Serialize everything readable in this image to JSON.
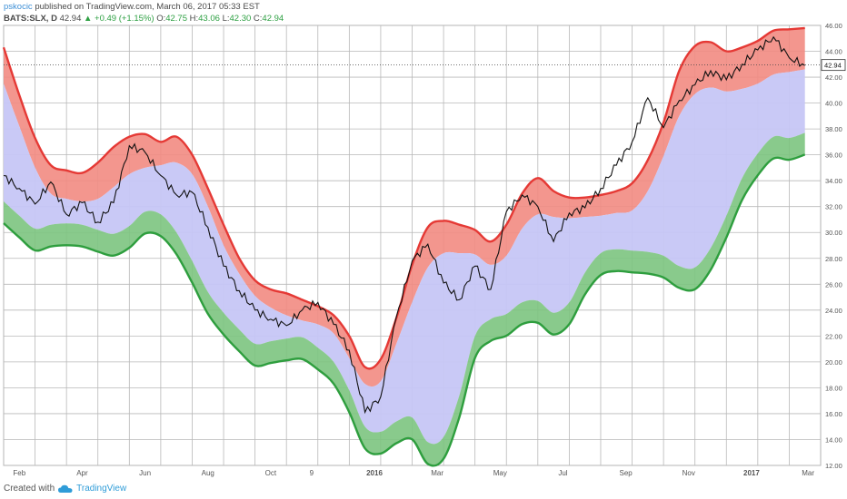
{
  "header": {
    "author": "pskocic",
    "published_text": "published on TradingView.com, March 06, 2017 05:33 EST",
    "symbol": "BATS:SLX, D",
    "last": "42.94",
    "change": "+0.49 (+1.15%)",
    "open_label": "O:",
    "open": "42.75",
    "high_label": "H:",
    "high": "43.06",
    "low_label": "L:",
    "low": "42.30",
    "close_label": "C:",
    "close": "42.94"
  },
  "footer": {
    "created_with": "Created with",
    "brand": "TradingView"
  },
  "colors": {
    "upper_band": "#e53935",
    "upper_fill": "#f28b82",
    "mid_fill": "#c6c6f5",
    "lower_band": "#2e9e3e",
    "lower_fill": "#7cc47f",
    "price": "#111111",
    "last_price_bg": "#ffffff"
  },
  "chart_data": {
    "type": "line",
    "title": "",
    "grid": true,
    "ylim": [
      12,
      46
    ],
    "y_ticks": [
      "12.00",
      "14.00",
      "16.00",
      "18.00",
      "20.00",
      "22.00",
      "24.00",
      "26.00",
      "28.00",
      "30.00",
      "32.00",
      "34.00",
      "36.00",
      "38.00",
      "40.00",
      "42.00",
      "44.00",
      "46.00"
    ],
    "x_labels": [
      "Feb",
      "Apr",
      "Jun",
      "Aug",
      "Oct",
      "9",
      "2016",
      "Mar",
      "May",
      "Jul",
      "Sep",
      "Nov",
      "2017",
      "Mar"
    ],
    "x_label_pos": [
      0.5,
      2.5,
      4.5,
      6.5,
      8.5,
      9.8,
      11.8,
      13.8,
      15.8,
      17.8,
      19.8,
      21.8,
      23.8,
      25.6
    ],
    "x_grid_pos": [
      0,
      1,
      2,
      3,
      4,
      5,
      6,
      7,
      8,
      9,
      10,
      11,
      12,
      13,
      14,
      15,
      16,
      17,
      18,
      19,
      20,
      21,
      22,
      23,
      24,
      25
    ],
    "last_price_label": "42.94",
    "last_price": 42.94,
    "x": [
      0,
      0.5,
      1,
      1.5,
      2,
      2.5,
      3,
      3.5,
      4,
      4.5,
      5,
      5.5,
      6,
      6.5,
      7,
      7.5,
      8,
      8.5,
      9,
      9.5,
      10,
      10.5,
      11,
      11.5,
      12,
      12.5,
      13,
      13.5,
      14,
      14.5,
      15,
      15.5,
      16,
      16.5,
      17,
      17.5,
      18,
      18.5,
      19,
      19.5,
      20,
      20.5,
      21,
      21.5,
      22,
      22.5,
      23,
      23.5,
      24,
      24.5,
      25,
      25.5
    ],
    "series": [
      {
        "role": "upper",
        "values": [
          44.3,
          40.6,
          37.3,
          35.2,
          34.8,
          34.6,
          35.4,
          36.6,
          37.4,
          37.6,
          37.0,
          37.4,
          36.0,
          33.4,
          30.6,
          28.0,
          26.3,
          25.6,
          25.3,
          24.8,
          24.3,
          23.6,
          22.0,
          19.6,
          20.2,
          23.4,
          27.5,
          30.4,
          30.9,
          30.6,
          30.2,
          29.3,
          30.6,
          33.0,
          34.2,
          33.2,
          32.7,
          32.7,
          32.9,
          33.2,
          33.8,
          35.6,
          38.5,
          42.5,
          44.4,
          44.7,
          44.0,
          44.3,
          44.8,
          45.6,
          45.7,
          45.8
        ]
      },
      {
        "role": "middle",
        "values": [
          41.5,
          38.2,
          35.0,
          33.0,
          32.6,
          32.4,
          32.6,
          33.5,
          34.5,
          35.0,
          35.2,
          35.4,
          34.5,
          32.0,
          29.0,
          26.8,
          25.1,
          24.2,
          23.6,
          23.2,
          22.9,
          22.2,
          20.3,
          18.3,
          18.5,
          21.4,
          24.6,
          27.3,
          28.4,
          28.4,
          28.3,
          27.5,
          28.2,
          30.3,
          31.4,
          31.2,
          31.1,
          31.2,
          31.3,
          31.5,
          31.7,
          33.2,
          35.9,
          39.0,
          40.7,
          41.2,
          40.9,
          41.1,
          41.5,
          42.2,
          42.4,
          42.6
        ]
      },
      {
        "role": "lower",
        "values": [
          32.4,
          31.3,
          30.3,
          30.6,
          30.7,
          30.6,
          30.2,
          29.9,
          30.5,
          31.6,
          31.4,
          30.0,
          27.8,
          25.4,
          23.8,
          22.5,
          21.4,
          21.6,
          21.8,
          21.9,
          21.1,
          20.0,
          17.8,
          15.0,
          14.6,
          15.4,
          15.7,
          13.8,
          14.2,
          17.4,
          22.0,
          23.3,
          23.7,
          24.6,
          24.7,
          23.8,
          24.6,
          26.9,
          28.4,
          28.7,
          28.6,
          28.5,
          28.2,
          27.4,
          27.3,
          28.8,
          31.3,
          34.2,
          36.1,
          37.4,
          37.3,
          37.7
        ]
      },
      {
        "role": "price",
        "values": [
          34.4,
          33.4,
          32.2,
          33.9,
          31.4,
          32.3,
          30.8,
          32.3,
          36.7,
          36.2,
          34.4,
          32.9,
          33.1,
          30.4,
          27.4,
          25.5,
          24.0,
          23.3,
          22.8,
          24.0,
          24.6,
          22.9,
          20.9,
          16.1,
          17.3,
          23.5,
          27.8,
          29.1,
          26.1,
          24.8,
          27.4,
          25.6,
          31.6,
          32.9,
          32.0,
          29.3,
          31.5,
          31.9,
          33.4,
          35.2,
          37.0,
          40.4,
          38.1,
          40.2,
          41.4,
          42.5,
          41.8,
          43.0,
          44.1,
          45.1,
          43.5,
          42.9
        ]
      }
    ]
  }
}
